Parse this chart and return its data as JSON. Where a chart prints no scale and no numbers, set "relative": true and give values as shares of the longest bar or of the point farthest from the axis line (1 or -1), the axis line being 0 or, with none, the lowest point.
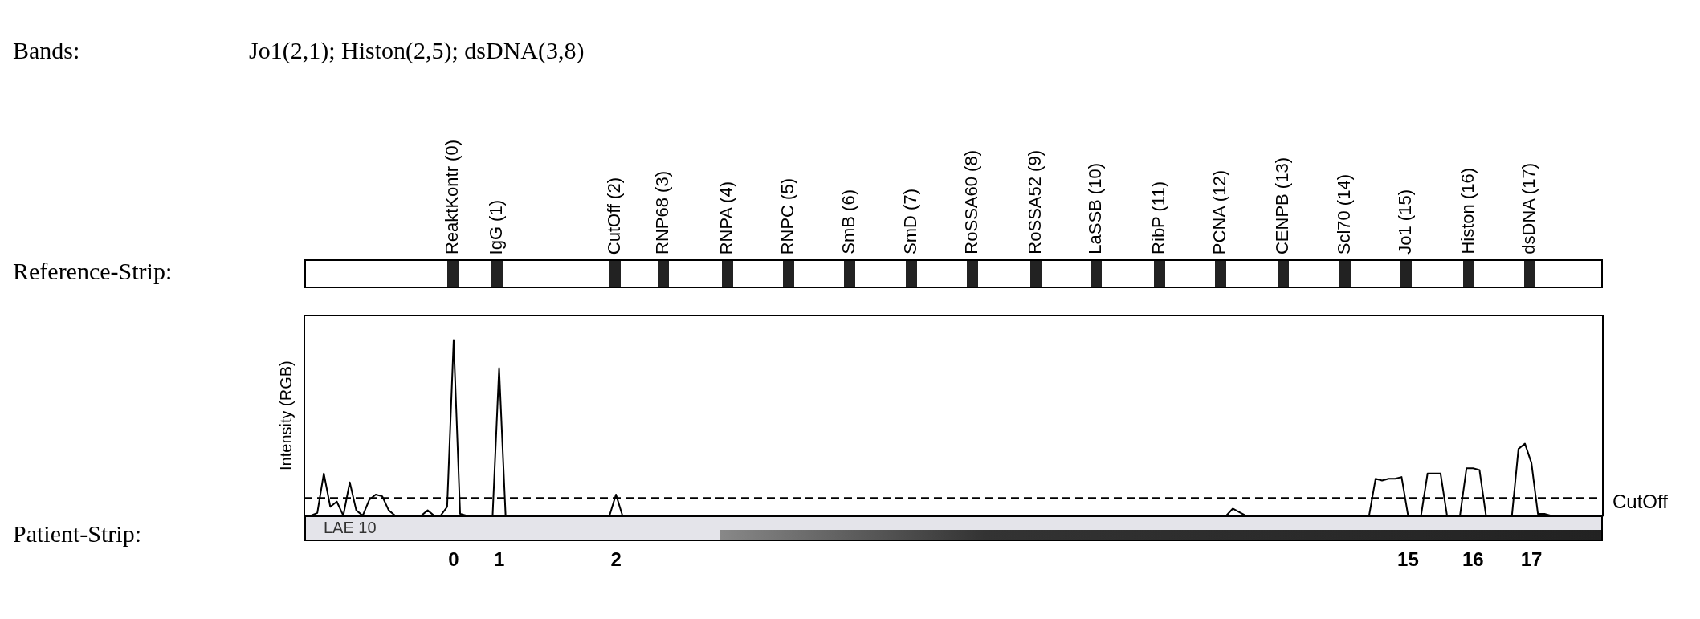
{
  "chart_data": {
    "type": "line",
    "relative": true,
    "ylabel": "Intensity (RGB)",
    "categories": [
      null,
      null,
      null,
      null,
      null,
      null,
      null,
      null,
      null,
      null,
      null,
      null,
      null,
      null,
      null,
      null,
      null,
      null,
      null,
      null,
      null,
      null,
      null,
      "0",
      null,
      null,
      null,
      null,
      null,
      null,
      "1",
      null,
      null,
      null,
      null,
      null,
      null,
      null,
      null,
      null,
      null,
      null,
      null,
      null,
      null,
      null,
      null,
      null,
      "2",
      null,
      null,
      null,
      null,
      null,
      null,
      null,
      null,
      null,
      null,
      null,
      null,
      null,
      null,
      null,
      null,
      null,
      null,
      null,
      null,
      null,
      null,
      null,
      null,
      null,
      null,
      null,
      null,
      null,
      null,
      null,
      null,
      null,
      null,
      null,
      null,
      null,
      null,
      null,
      null,
      null,
      null,
      null,
      null,
      null,
      null,
      null,
      null,
      null,
      null,
      null,
      null,
      null,
      null,
      null,
      null,
      null,
      null,
      null,
      null,
      null,
      null,
      null,
      null,
      null,
      null,
      null,
      null,
      null,
      null,
      null,
      null,
      null,
      null,
      null,
      null,
      null,
      null,
      null,
      null,
      null,
      null,
      null,
      null,
      null,
      null,
      null,
      null,
      null,
      null,
      null,
      null,
      null,
      null,
      null,
      null,
      null,
      null,
      null,
      null,
      null,
      null,
      null,
      null,
      null,
      null,
      null,
      null,
      null,
      null,
      null,
      null,
      null,
      null,
      null,
      null,
      null,
      null,
      null,
      null,
      null,
      "15",
      null,
      null,
      null,
      null,
      null,
      null,
      null,
      null,
      null,
      "16",
      null,
      null,
      null,
      null,
      null,
      null,
      null,
      null,
      "17",
      null,
      null,
      null,
      null,
      null,
      null,
      null,
      null,
      null,
      null,
      null
    ],
    "series": [
      {
        "color": "#000000",
        "values": [
          0,
          0,
          0.015,
          0.24,
          0.05,
          0.08,
          0,
          0.19,
          0.03,
          0,
          0.09,
          0.12,
          0.11,
          0.03,
          0,
          0,
          0,
          0,
          0,
          0.03,
          0,
          0,
          0.05,
          1,
          0.01,
          0,
          0,
          0,
          0,
          0,
          0.84,
          0,
          0,
          0,
          0,
          0,
          0,
          0,
          0,
          0,
          0,
          0,
          0,
          0,
          0,
          0,
          0,
          0,
          0.12,
          0,
          0,
          0,
          0,
          0,
          0,
          0,
          0,
          0,
          0,
          0,
          0,
          0,
          0,
          0,
          0,
          0,
          0,
          0,
          0,
          0,
          0,
          0,
          0,
          0,
          0,
          0,
          0,
          0,
          0,
          0,
          0,
          0,
          0,
          0,
          0,
          0,
          0,
          0,
          0,
          0,
          0,
          0,
          0,
          0,
          0,
          0,
          0,
          0,
          0,
          0,
          0,
          0,
          0,
          0,
          0,
          0,
          0,
          0,
          0,
          0,
          0,
          0,
          0,
          0,
          0,
          0,
          0,
          0,
          0,
          0,
          0,
          0,
          0,
          0,
          0,
          0,
          0,
          0,
          0,
          0,
          0,
          0,
          0,
          0,
          0,
          0,
          0,
          0,
          0,
          0,
          0,
          0,
          0,
          0.04,
          0.02,
          0,
          0,
          0,
          0,
          0,
          0,
          0,
          0,
          0,
          0,
          0,
          0,
          0,
          0,
          0,
          0,
          0,
          0,
          0,
          0,
          0.21,
          0.2,
          0.21,
          0.21,
          0.22,
          0,
          0,
          0,
          0.24,
          0.24,
          0.24,
          0,
          0,
          0,
          0.27,
          0.27,
          0.26,
          0,
          0,
          0,
          0,
          0,
          0.38,
          0.41,
          0.3,
          0.01,
          0.01,
          0,
          0,
          0,
          0,
          0,
          0,
          0,
          0,
          0
        ]
      }
    ],
    "ref_lines": [
      {
        "axis": "y",
        "value": 0.1,
        "label": "CutOff",
        "color": "#000000",
        "line_style": "dashed"
      }
    ],
    "annotations": [
      "Bands:",
      "Jo1(2,1); Histon(2,5); dsDNA(3,8)",
      "Reference-Strip:",
      "Patient-Strip:",
      "LAE 10",
      "ReaktKontr (0)",
      "IgG (1)",
      "CutOff (2)",
      "RNP68 (3)",
      "RNPA (4)",
      "RNPC (5)",
      "SmB (6)",
      "SmD (7)",
      "RoSSA60 (8)",
      "RoSSA52 (9)",
      "LaSSB (10)",
      "RibP (11)",
      "PCNA (12)",
      "CENPB (13)",
      "Scl70 (14)",
      "Jo1 (15)",
      "Histon (16)",
      "dsDNA (17)"
    ],
    "grid": false,
    "legend": false,
    "marker": "none",
    "line_style": "solid"
  }
}
